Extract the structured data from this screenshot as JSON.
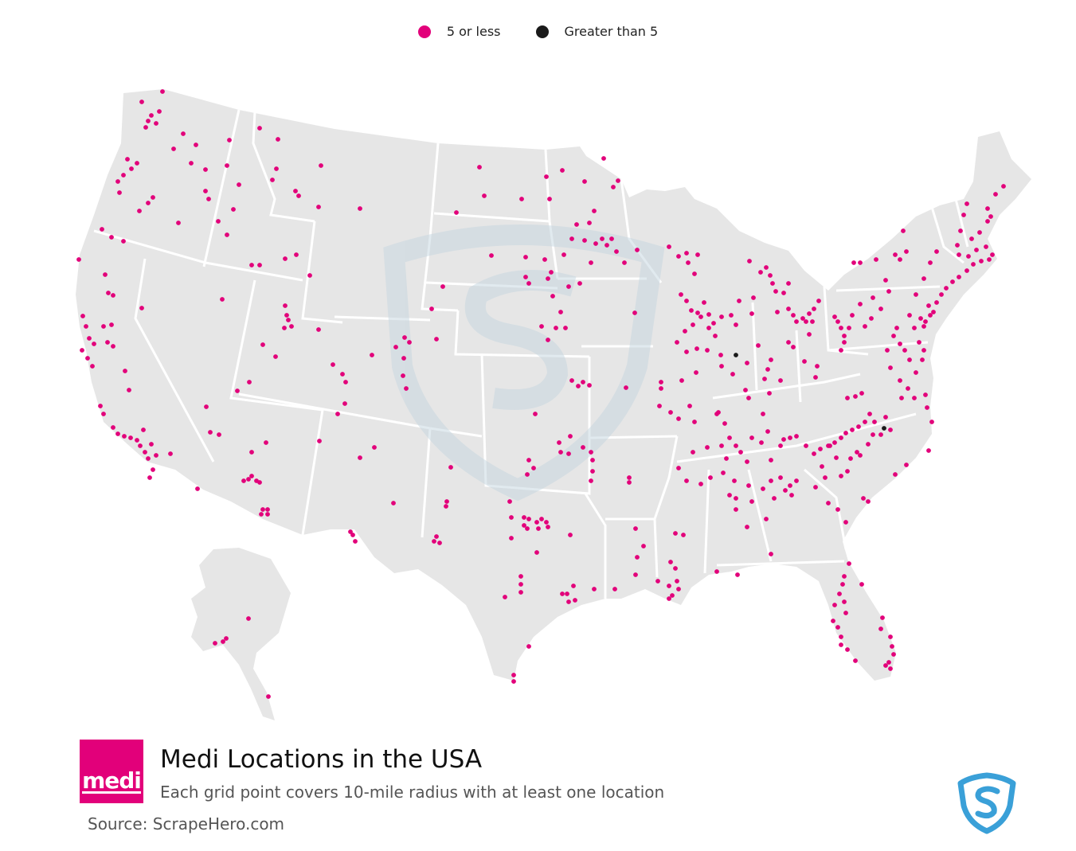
{
  "legend": {
    "items": [
      {
        "label": "5 or less",
        "color": "#e2007a"
      },
      {
        "label": "Greater than 5",
        "color": "#1a1a1a"
      }
    ]
  },
  "colors": {
    "land": "#e6e6e6",
    "border": "#ffffff",
    "low": "#e2007a",
    "high": "#1a1a1a",
    "watermark": "#c5d6e0",
    "brand": "#3aa0d8"
  },
  "logo": {
    "text": "medi",
    "color": "#e2007a"
  },
  "header": {
    "title": "Medi Locations in the USA",
    "subtitle": "Each grid point covers 10-mile radius with at least one location"
  },
  "footer": {
    "source": "Source: ScrapeHero.com"
  },
  "icons": {
    "brand": "scrapehero-shield-icon"
  },
  "map_data": {
    "type": "dot-density",
    "regions_drawn": [
      "Contiguous United States",
      "Alaska"
    ],
    "categories": [
      "5 or less",
      "Greater than 5"
    ]
  }
}
